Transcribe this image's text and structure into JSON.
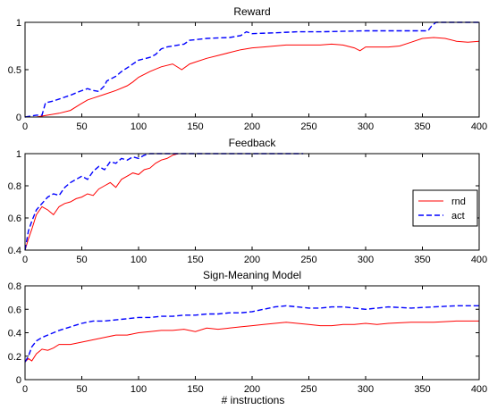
{
  "figure": {
    "xlabel": "# instructions",
    "legend": {
      "position": "right-of-middle-panel",
      "entries": [
        {
          "label": "rnd",
          "color": "#ff0000",
          "style": "solid"
        },
        {
          "label": "act",
          "color": "#0000ff",
          "style": "dashed"
        }
      ]
    }
  },
  "chart_data": [
    {
      "type": "line",
      "title": "Reward",
      "xlim": [
        0,
        400
      ],
      "ylim": [
        0,
        1
      ],
      "xticks": [
        "0",
        "50",
        "100",
        "150",
        "200",
        "250",
        "300",
        "350",
        "400"
      ],
      "yticks": [
        "0",
        "0.5",
        "1"
      ],
      "yticks_values": [
        0,
        0.5,
        1
      ],
      "series": [
        {
          "name": "rnd",
          "color": "#ff0000",
          "dash": "",
          "x": [
            0,
            10,
            20,
            30,
            40,
            48,
            55,
            60,
            70,
            80,
            90,
            95,
            100,
            110,
            120,
            130,
            138,
            145,
            150,
            160,
            170,
            180,
            190,
            200,
            210,
            220,
            230,
            240,
            250,
            260,
            270,
            280,
            290,
            295,
            300,
            310,
            320,
            330,
            340,
            350,
            360,
            370,
            380,
            390,
            400
          ],
          "y": [
            0,
            0,
            0.02,
            0.04,
            0.07,
            0.13,
            0.18,
            0.2,
            0.24,
            0.28,
            0.33,
            0.37,
            0.42,
            0.48,
            0.53,
            0.56,
            0.5,
            0.56,
            0.58,
            0.62,
            0.65,
            0.68,
            0.71,
            0.73,
            0.74,
            0.75,
            0.76,
            0.76,
            0.76,
            0.76,
            0.77,
            0.76,
            0.73,
            0.7,
            0.74,
            0.74,
            0.74,
            0.75,
            0.79,
            0.83,
            0.84,
            0.83,
            0.8,
            0.79,
            0.8
          ]
        },
        {
          "name": "act",
          "color": "#0000ff",
          "dash": "6,3",
          "x": [
            0,
            10,
            15,
            18,
            25,
            30,
            40,
            48,
            55,
            60,
            65,
            70,
            72,
            80,
            85,
            90,
            100,
            110,
            115,
            120,
            125,
            140,
            145,
            160,
            180,
            190,
            195,
            200,
            220,
            240,
            260,
            300,
            320,
            340,
            355,
            358,
            362,
            380,
            400
          ],
          "y": [
            0,
            0.02,
            0.02,
            0.15,
            0.17,
            0.19,
            0.23,
            0.27,
            0.3,
            0.28,
            0.27,
            0.33,
            0.38,
            0.43,
            0.48,
            0.52,
            0.6,
            0.63,
            0.66,
            0.72,
            0.74,
            0.77,
            0.81,
            0.83,
            0.84,
            0.86,
            0.9,
            0.88,
            0.89,
            0.9,
            0.9,
            0.91,
            0.91,
            0.91,
            0.91,
            0.96,
            1.0,
            1.0,
            1.0
          ]
        }
      ]
    },
    {
      "type": "line",
      "title": "Feedback",
      "xlim": [
        0,
        400
      ],
      "ylim": [
        0.4,
        1
      ],
      "xticks": [
        "0",
        "50",
        "100",
        "150",
        "200",
        "250",
        "300",
        "350",
        "400"
      ],
      "yticks": [
        "0.4",
        "0.6",
        "0.8",
        "1"
      ],
      "yticks_values": [
        0.4,
        0.6,
        0.8,
        1.0
      ],
      "series": [
        {
          "name": "rnd",
          "color": "#ff0000",
          "dash": "",
          "x": [
            0,
            3,
            6,
            10,
            15,
            20,
            25,
            30,
            35,
            40,
            45,
            50,
            55,
            60,
            65,
            70,
            75,
            80,
            85,
            90,
            95,
            100,
            105,
            110,
            115,
            120,
            125,
            130,
            135,
            140,
            160,
            180,
            200,
            220,
            245
          ],
          "y": [
            0.4,
            0.47,
            0.53,
            0.62,
            0.67,
            0.65,
            0.62,
            0.67,
            0.69,
            0.7,
            0.72,
            0.73,
            0.75,
            0.74,
            0.78,
            0.8,
            0.82,
            0.79,
            0.84,
            0.86,
            0.88,
            0.87,
            0.9,
            0.91,
            0.94,
            0.96,
            0.97,
            0.99,
            1.0,
            1.0,
            1.0,
            1.0,
            1.0,
            1.0,
            1.0
          ]
        },
        {
          "name": "act",
          "color": "#0000ff",
          "dash": "6,3",
          "x": [
            0,
            3,
            6,
            10,
            15,
            20,
            25,
            30,
            35,
            40,
            45,
            50,
            55,
            60,
            65,
            70,
            75,
            80,
            85,
            90,
            95,
            100,
            105,
            110,
            120,
            140,
            160,
            180,
            200,
            220,
            245
          ],
          "y": [
            0.4,
            0.52,
            0.58,
            0.65,
            0.69,
            0.73,
            0.75,
            0.74,
            0.79,
            0.82,
            0.84,
            0.86,
            0.84,
            0.89,
            0.92,
            0.9,
            0.95,
            0.94,
            0.97,
            0.96,
            0.98,
            0.97,
            0.99,
            1.0,
            1.0,
            1.0,
            1.0,
            1.0,
            1.0,
            1.0,
            1.0
          ]
        }
      ]
    },
    {
      "type": "line",
      "title": "Sign-Meaning Model",
      "xlim": [
        0,
        400
      ],
      "ylim": [
        0,
        0.8
      ],
      "xticks": [
        "0",
        "50",
        "100",
        "150",
        "200",
        "250",
        "300",
        "350",
        "400"
      ],
      "yticks": [
        "0",
        "0.2",
        "0.4",
        "0.6",
        "0.8"
      ],
      "yticks_values": [
        0,
        0.2,
        0.4,
        0.6,
        0.8
      ],
      "series": [
        {
          "name": "rnd",
          "color": "#ff0000",
          "dash": "",
          "x": [
            0,
            3,
            6,
            10,
            15,
            20,
            25,
            30,
            40,
            50,
            60,
            70,
            80,
            90,
            100,
            110,
            120,
            130,
            140,
            150,
            160,
            170,
            180,
            190,
            200,
            210,
            220,
            230,
            240,
            250,
            260,
            270,
            280,
            290,
            300,
            310,
            320,
            340,
            360,
            380,
            400
          ],
          "y": [
            0.15,
            0.18,
            0.16,
            0.22,
            0.26,
            0.25,
            0.27,
            0.3,
            0.3,
            0.32,
            0.34,
            0.36,
            0.38,
            0.38,
            0.4,
            0.41,
            0.42,
            0.42,
            0.43,
            0.41,
            0.44,
            0.43,
            0.44,
            0.45,
            0.46,
            0.47,
            0.48,
            0.49,
            0.48,
            0.47,
            0.46,
            0.46,
            0.47,
            0.47,
            0.48,
            0.47,
            0.48,
            0.49,
            0.49,
            0.5,
            0.5
          ]
        },
        {
          "name": "act",
          "color": "#0000ff",
          "dash": "6,3",
          "x": [
            0,
            3,
            6,
            10,
            15,
            20,
            25,
            30,
            40,
            50,
            60,
            70,
            80,
            90,
            100,
            110,
            120,
            130,
            140,
            150,
            160,
            170,
            180,
            190,
            200,
            210,
            220,
            230,
            240,
            250,
            260,
            270,
            280,
            290,
            300,
            320,
            340,
            360,
            380,
            400
          ],
          "y": [
            0.15,
            0.2,
            0.28,
            0.33,
            0.36,
            0.38,
            0.4,
            0.42,
            0.45,
            0.48,
            0.5,
            0.5,
            0.51,
            0.52,
            0.53,
            0.53,
            0.54,
            0.54,
            0.55,
            0.55,
            0.56,
            0.56,
            0.57,
            0.57,
            0.58,
            0.6,
            0.62,
            0.63,
            0.62,
            0.61,
            0.61,
            0.62,
            0.62,
            0.61,
            0.6,
            0.62,
            0.61,
            0.62,
            0.63,
            0.63
          ]
        }
      ]
    }
  ]
}
